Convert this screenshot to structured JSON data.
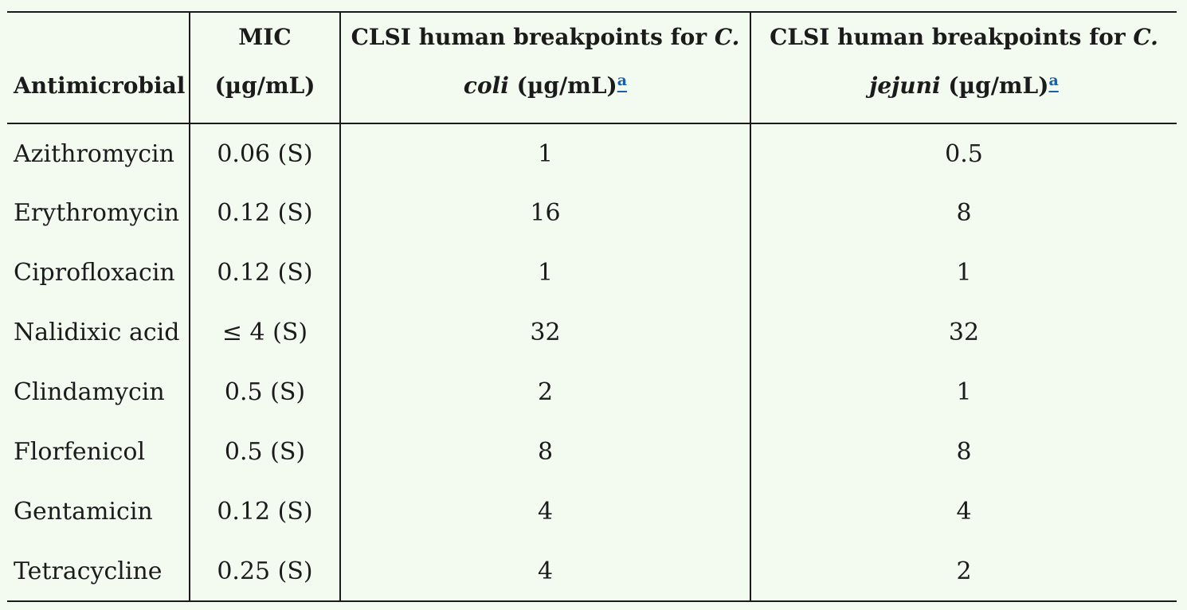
{
  "table": {
    "headers": {
      "antimicrobial": "Antimicrobial",
      "mic_line1": "MIC",
      "mic_line2": "(µg/mL)",
      "coli_pre": "CLSI human breakpoints for ",
      "coli_species": "C. coli",
      "coli_post": " (µg/mL)",
      "jejuni_pre": "CLSI human breakpoints for ",
      "jejuni_species": "C. jejuni",
      "jejuni_post": " (µg/mL)",
      "footnote_marker": "a"
    },
    "rows": [
      {
        "antimicrobial": "Azithromycin",
        "mic": "0.06 (S)",
        "coli": "1",
        "jejuni": "0.5"
      },
      {
        "antimicrobial": "Erythromycin",
        "mic": "0.12 (S)",
        "coli": "16",
        "jejuni": "8"
      },
      {
        "antimicrobial": "Ciprofloxacin",
        "mic": "0.12 (S)",
        "coli": "1",
        "jejuni": "1"
      },
      {
        "antimicrobial": "Nalidixic acid",
        "mic": "≤ 4 (S)",
        "coli": "32",
        "jejuni": "32"
      },
      {
        "antimicrobial": "Clindamycin",
        "mic": "0.5 (S)",
        "coli": "2",
        "jejuni": "1"
      },
      {
        "antimicrobial": "Florfenicol",
        "mic": "0.5 (S)",
        "coli": "8",
        "jejuni": "8"
      },
      {
        "antimicrobial": "Gentamicin",
        "mic": "0.12 (S)",
        "coli": "4",
        "jejuni": "4"
      },
      {
        "antimicrobial": "Tetracycline",
        "mic": "0.25 (S)",
        "coli": "4",
        "jejuni": "2"
      }
    ]
  }
}
